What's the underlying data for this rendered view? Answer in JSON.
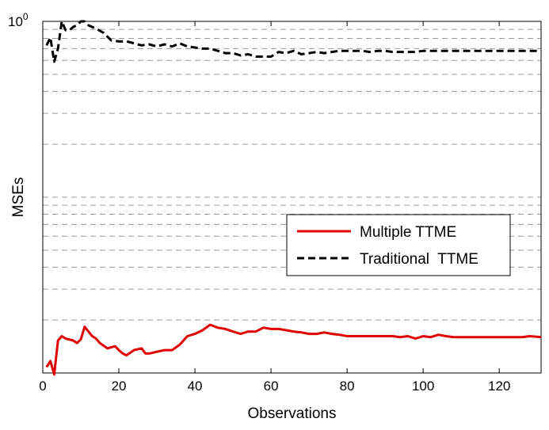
{
  "chart_data": {
    "type": "line",
    "title": "",
    "xlabel": "Observations",
    "ylabel": "MSEs",
    "xlim": [
      0,
      131
    ],
    "ylim": [
      0.01,
      1
    ],
    "yscale": "log",
    "x_ticks": [
      0,
      20,
      40,
      60,
      80,
      100,
      120
    ],
    "y_tick_label": {
      "base": "10",
      "exponent": "0"
    },
    "grid": "horizontal dashed",
    "legend_position": "center-right",
    "series": [
      {
        "name": "Multiple TTME",
        "color": "#e00000",
        "style": "solid",
        "x": [
          1,
          2,
          3,
          4,
          5,
          6,
          8,
          9,
          10,
          11,
          12,
          13,
          14,
          15,
          17,
          19,
          20,
          21,
          22,
          24,
          26,
          27,
          28,
          30,
          32,
          34,
          36,
          38,
          40,
          42,
          44,
          46,
          48,
          50,
          52,
          54,
          56,
          58,
          60,
          62,
          64,
          66,
          68,
          70,
          72,
          74,
          76,
          78,
          80,
          82,
          84,
          86,
          88,
          90,
          92,
          94,
          96,
          98,
          100,
          102,
          104,
          106,
          108,
          110,
          112,
          114,
          116,
          118,
          120,
          122,
          124,
          126,
          128,
          131
        ],
        "values": [
          0.0108,
          0.0117,
          0.0098,
          0.0153,
          0.0162,
          0.0157,
          0.0153,
          0.0148,
          0.0155,
          0.0183,
          0.0172,
          0.0162,
          0.0157,
          0.0148,
          0.0138,
          0.0142,
          0.0135,
          0.0129,
          0.0126,
          0.0135,
          0.0138,
          0.0129,
          0.0129,
          0.0132,
          0.0135,
          0.0135,
          0.0145,
          0.0162,
          0.0167,
          0.0175,
          0.0188,
          0.0181,
          0.0178,
          0.0172,
          0.0167,
          0.0172,
          0.0172,
          0.0181,
          0.0178,
          0.0178,
          0.0175,
          0.0172,
          0.017,
          0.0167,
          0.0167,
          0.017,
          0.0167,
          0.0165,
          0.0162,
          0.0162,
          0.0162,
          0.0162,
          0.0162,
          0.0162,
          0.0162,
          0.016,
          0.0162,
          0.0157,
          0.0162,
          0.016,
          0.0165,
          0.0162,
          0.016,
          0.016,
          0.016,
          0.016,
          0.016,
          0.016,
          0.016,
          0.016,
          0.016,
          0.016,
          0.0162,
          0.016
        ]
      },
      {
        "name": "Traditional  TTME",
        "color": "#000000",
        "style": "dashed",
        "x": [
          1,
          2,
          3,
          4,
          5,
          6,
          7,
          8,
          9,
          10,
          11,
          12,
          14,
          16,
          18,
          20,
          22,
          24,
          26,
          28,
          30,
          32,
          34,
          36,
          38,
          40,
          42,
          44,
          46,
          48,
          50,
          52,
          54,
          56,
          58,
          60,
          62,
          64,
          66,
          68,
          70,
          72,
          74,
          76,
          78,
          80,
          82,
          84,
          86,
          88,
          90,
          92,
          94,
          96,
          98,
          100,
          102,
          104,
          106,
          108,
          110,
          112,
          114,
          116,
          118,
          120,
          122,
          124,
          126,
          128,
          131
        ],
        "values": [
          0.73,
          0.81,
          0.59,
          0.7,
          1.0,
          0.89,
          0.89,
          0.93,
          0.95,
          1.0,
          1.0,
          0.95,
          0.91,
          0.86,
          0.78,
          0.77,
          0.77,
          0.75,
          0.73,
          0.74,
          0.72,
          0.74,
          0.72,
          0.75,
          0.72,
          0.71,
          0.7,
          0.7,
          0.68,
          0.66,
          0.66,
          0.64,
          0.65,
          0.63,
          0.63,
          0.63,
          0.67,
          0.66,
          0.68,
          0.65,
          0.66,
          0.67,
          0.66,
          0.67,
          0.68,
          0.68,
          0.68,
          0.68,
          0.67,
          0.68,
          0.68,
          0.67,
          0.67,
          0.67,
          0.67,
          0.68,
          0.68,
          0.68,
          0.68,
          0.68,
          0.68,
          0.68,
          0.68,
          0.68,
          0.68,
          0.68,
          0.68,
          0.68,
          0.68,
          0.68,
          0.68
        ]
      }
    ]
  }
}
